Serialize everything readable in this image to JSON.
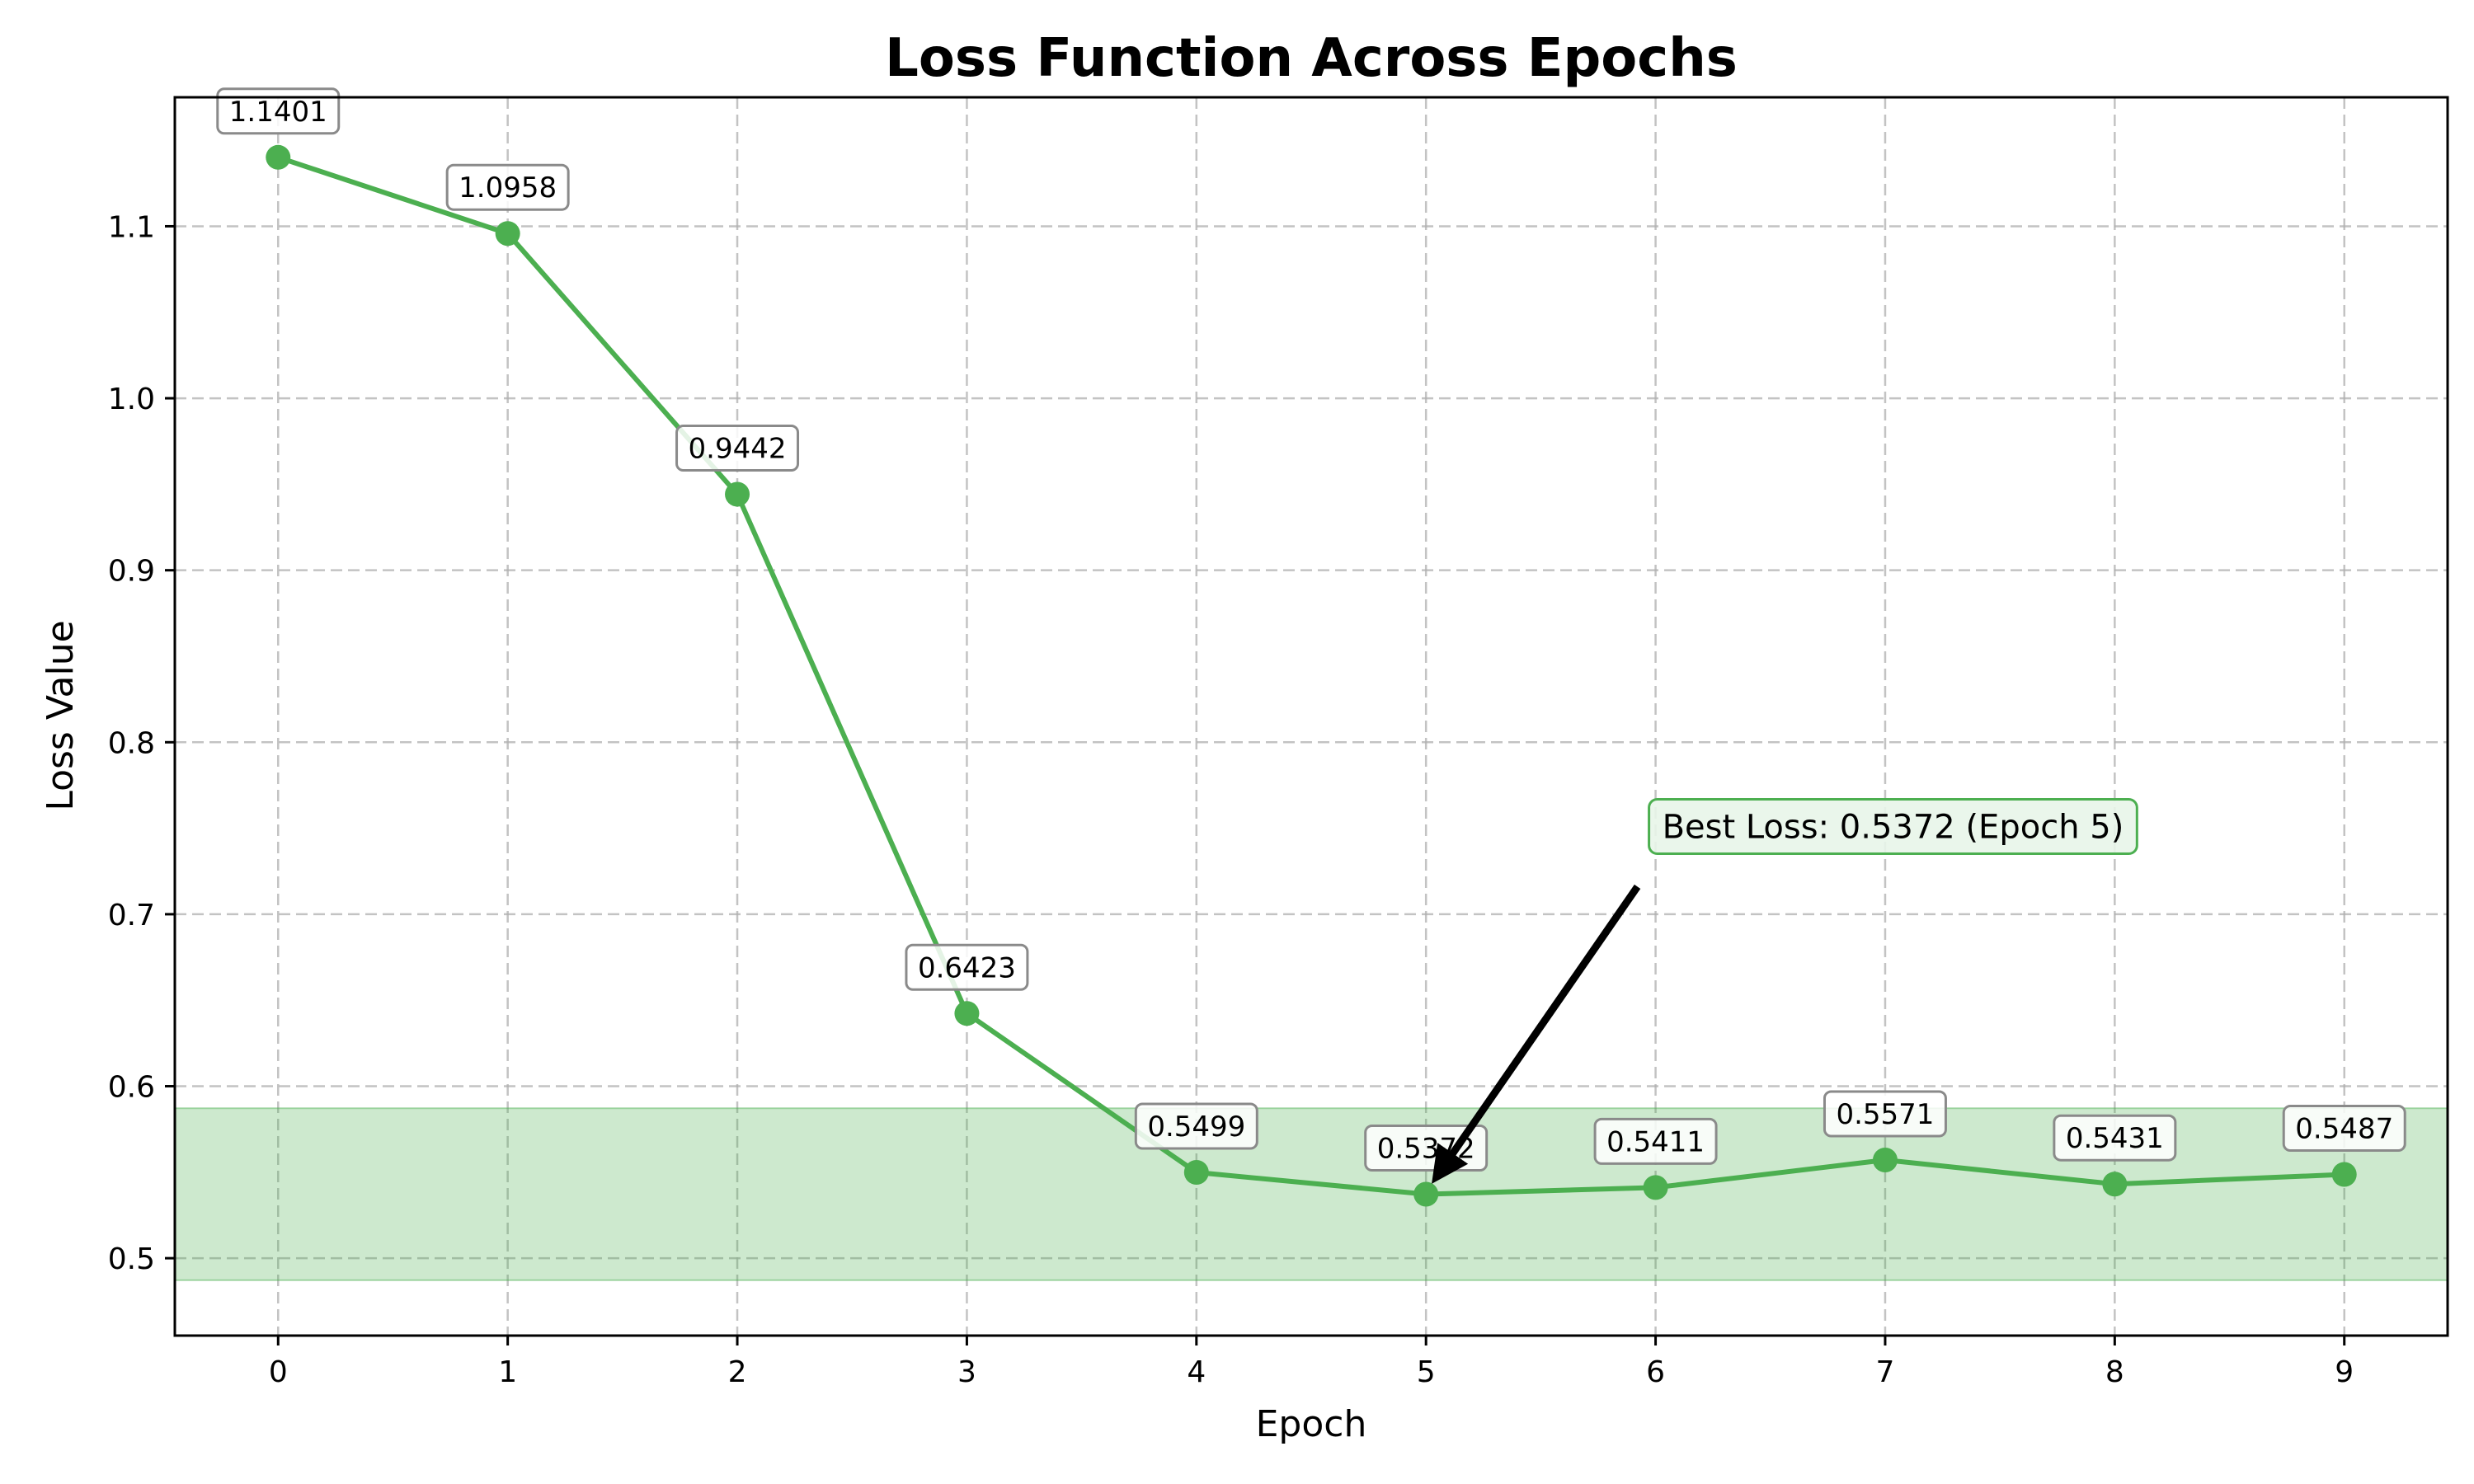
{
  "chart_data": {
    "type": "line",
    "title": "Loss Function Across Epochs",
    "xlabel": "Epoch",
    "ylabel": "Loss Value",
    "x": [
      0,
      1,
      2,
      3,
      4,
      5,
      6,
      7,
      8,
      9
    ],
    "x_tick_labels": [
      "0",
      "1",
      "2",
      "3",
      "4",
      "5",
      "6",
      "7",
      "8",
      "9"
    ],
    "y_ticks": [
      0.5,
      0.6,
      0.7,
      0.8,
      0.9,
      1.0,
      1.1
    ],
    "y_tick_labels": [
      "0.5",
      "0.6",
      "0.7",
      "0.8",
      "0.9",
      "1.0",
      "1.1"
    ],
    "xlim": [
      -0.45,
      9.45
    ],
    "ylim": [
      0.455,
      1.175
    ],
    "series": [
      {
        "values": [
          1.1401,
          1.0958,
          0.9442,
          0.6423,
          0.5499,
          0.5372,
          0.5411,
          0.5571,
          0.5431,
          0.5487
        ],
        "data_labels": [
          "1.1401",
          "1.0958",
          "0.9442",
          "0.6423",
          "0.5499",
          "0.5372",
          "0.5411",
          "0.5571",
          "0.5431",
          "0.5487"
        ],
        "color": "#4caf50",
        "marker": "circle"
      }
    ],
    "band": {
      "y_range": [
        0.4872,
        0.5872
      ],
      "color": "#4caf50",
      "opacity": 0.28
    },
    "annotation": {
      "text": "Best Loss: 0.5372 (Epoch 5)",
      "point": {
        "x": 5,
        "y": 0.5372
      },
      "text_position": {
        "x": 6.0,
        "y": 0.74
      },
      "border_color": "#4caf50",
      "fill_color": "#e8f5e9"
    },
    "grid": true,
    "legend": "none"
  }
}
